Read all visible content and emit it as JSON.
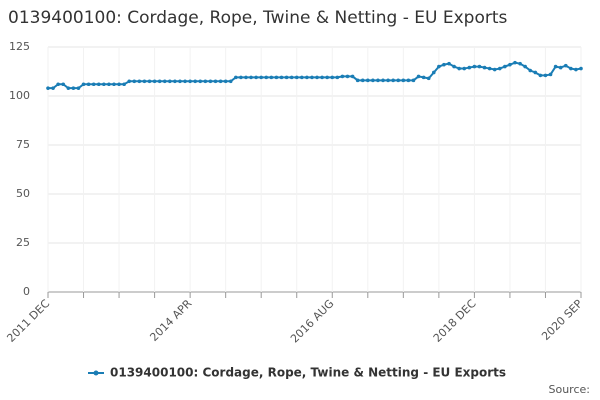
{
  "chart_data": {
    "type": "line",
    "title": "0139400100: Cordage, Rope, Twine & Netting - EU Exports",
    "source": "Source:",
    "categories": [
      "2011 DEC",
      null,
      null,
      null,
      null,
      null,
      null,
      null,
      null,
      null,
      null,
      null,
      null,
      null,
      null,
      null,
      null,
      null,
      null,
      null,
      null,
      null,
      null,
      null,
      null,
      null,
      null,
      null,
      "2014 APR",
      null,
      null,
      null,
      null,
      null,
      null,
      null,
      null,
      null,
      null,
      null,
      null,
      null,
      null,
      null,
      null,
      null,
      null,
      null,
      null,
      null,
      null,
      null,
      null,
      null,
      null,
      null,
      "2016 AUG",
      null,
      null,
      null,
      null,
      null,
      null,
      null,
      null,
      null,
      null,
      null,
      null,
      null,
      null,
      null,
      null,
      null,
      null,
      null,
      null,
      null,
      null,
      null,
      null,
      null,
      null,
      null,
      "2018 DEC",
      null,
      null,
      null,
      null,
      null,
      null,
      null,
      null,
      null,
      null,
      null,
      null,
      null,
      null,
      null,
      null,
      null,
      null,
      null,
      null,
      "2020 SEP"
    ],
    "series": [
      {
        "name": "0139400100: Cordage, Rope, Twine & Netting - EU Exports",
        "color": "#1a7db5",
        "values": [
          104,
          104,
          106,
          106,
          104,
          104,
          104,
          106,
          106,
          106,
          106,
          106,
          106,
          106,
          106,
          106,
          107.5,
          107.5,
          107.5,
          107.5,
          107.5,
          107.5,
          107.5,
          107.5,
          107.5,
          107.5,
          107.5,
          107.5,
          107.5,
          107.5,
          107.5,
          107.5,
          107.5,
          107.5,
          107.5,
          107.5,
          107.5,
          109.5,
          109.5,
          109.5,
          109.5,
          109.5,
          109.5,
          109.5,
          109.5,
          109.5,
          109.5,
          109.5,
          109.5,
          109.5,
          109.5,
          109.5,
          109.5,
          109.5,
          109.5,
          109.5,
          109.5,
          109.5,
          110,
          110,
          110,
          108,
          108,
          108,
          108,
          108,
          108,
          108,
          108,
          108,
          108,
          108,
          108,
          110,
          109.5,
          109,
          112,
          115,
          116,
          116.5,
          115,
          114,
          114,
          114.5,
          115,
          115,
          114.5,
          114,
          113.5,
          114,
          115,
          116,
          117,
          116.5,
          115,
          113,
          112,
          110.5,
          110.5,
          111,
          115,
          114.5,
          115.5,
          114,
          113.5,
          114
        ]
      }
    ],
    "ylim": [
      0,
      125
    ],
    "yticks": [
      0,
      25,
      50,
      75,
      100,
      125
    ],
    "grid": true,
    "legend": "bottom"
  }
}
